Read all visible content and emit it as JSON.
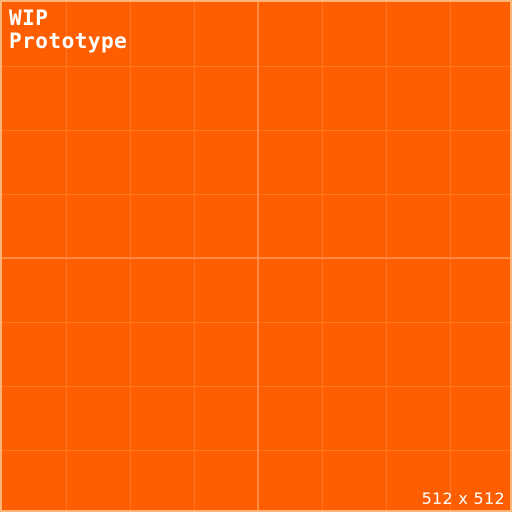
{
  "title": {
    "line1": "WIP",
    "line2": "Prototype"
  },
  "size_label": "512 x 512",
  "colors": {
    "background": "#ff5e00",
    "border": "#ffb37a",
    "text": "#ffffff",
    "grid_minor": "#ff7a2e",
    "grid_major": "#ff9a5c"
  }
}
